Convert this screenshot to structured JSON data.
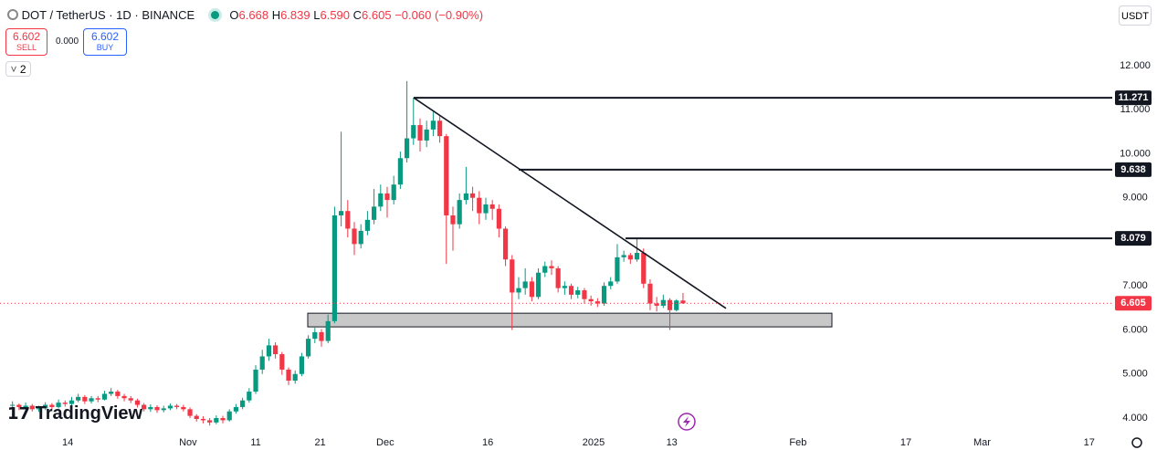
{
  "header": {
    "symbol": "DOT / TetherUS · 1D · BINANCE",
    "ohlc": [
      {
        "key": "O",
        "value": "6.668"
      },
      {
        "key": "H",
        "value": "6.839"
      },
      {
        "key": "L",
        "value": "6.590"
      },
      {
        "key": "C",
        "value": "6.605"
      }
    ],
    "change": "−0.060 (−0.90%)",
    "sell_price": "6.602",
    "sell_label": "SELL",
    "spread": "0.000",
    "buy_price": "6.602",
    "buy_label": "BUY",
    "indicators_count": "2",
    "currency": "USDT",
    "watermark": "TradingView"
  },
  "chart_data": {
    "type": "candlestick",
    "colors": {
      "up": "#089981",
      "down": "#f23645"
    },
    "open": [
      4.28,
      4.3,
      4.25,
      4.28,
      4.2,
      4.22,
      4.3,
      4.25,
      4.35,
      4.32,
      4.4,
      4.48,
      4.38,
      4.45,
      4.42,
      4.55,
      4.6,
      4.5,
      4.45,
      4.4,
      4.3,
      4.2,
      4.25,
      4.18,
      4.22,
      4.28,
      4.25,
      4.2,
      4.05,
      3.98,
      3.95,
      3.9,
      4.0,
      3.95,
      4.15,
      4.25,
      4.4,
      4.6,
      5.1,
      5.4,
      5.65,
      5.45,
      5.1,
      4.85,
      5.0,
      5.4,
      5.8,
      5.95,
      5.75,
      6.2,
      8.6,
      8.7,
      8.3,
      7.95,
      8.25,
      8.5,
      8.8,
      9.1,
      8.95,
      9.3,
      9.9,
      10.35,
      10.65,
      10.3,
      10.55,
      10.75,
      10.4,
      8.6,
      8.4,
      8.95,
      9.1,
      9.0,
      8.65,
      8.85,
      8.75,
      8.3,
      7.6,
      6.85,
      6.95,
      7.1,
      6.75,
      7.3,
      7.45,
      7.4,
      6.95,
      7.0,
      6.8,
      6.9,
      6.7,
      6.65,
      6.6,
      7.0,
      7.1,
      7.65,
      7.7,
      7.6,
      7.75,
      7.05,
      6.6,
      6.55,
      6.68,
      6.45,
      6.668
    ],
    "high": [
      4.38,
      4.33,
      4.35,
      4.32,
      4.28,
      4.36,
      4.34,
      4.42,
      4.4,
      4.48,
      4.55,
      4.52,
      4.5,
      4.5,
      4.62,
      4.68,
      4.64,
      4.55,
      4.5,
      4.44,
      4.34,
      4.31,
      4.29,
      4.28,
      4.33,
      4.32,
      4.3,
      4.24,
      4.09,
      4.04,
      4.0,
      4.06,
      4.05,
      4.2,
      4.32,
      4.46,
      4.68,
      5.2,
      5.55,
      5.8,
      5.72,
      5.5,
      5.15,
      5.08,
      5.48,
      5.88,
      6.05,
      6.02,
      6.35,
      8.8,
      10.5,
      8.95,
      8.45,
      8.4,
      8.7,
      9.2,
      9.3,
      9.25,
      9.5,
      10.05,
      11.65,
      11.271,
      10.8,
      10.75,
      10.95,
      10.85,
      10.45,
      8.8,
      9.1,
      9.7,
      9.25,
      9.15,
      9.0,
      8.95,
      8.85,
      8.35,
      7.7,
      7.2,
      7.4,
      7.2,
      7.4,
      7.55,
      7.58,
      7.45,
      7.1,
      7.05,
      6.98,
      6.95,
      6.78,
      6.72,
      7.08,
      7.2,
      7.95,
      7.8,
      7.75,
      8.079,
      7.85,
      7.15,
      6.75,
      6.8,
      6.72,
      6.7,
      6.839
    ],
    "low": [
      4.22,
      4.18,
      4.2,
      4.15,
      4.14,
      4.18,
      4.2,
      4.22,
      4.26,
      4.28,
      4.36,
      4.32,
      4.33,
      4.36,
      4.4,
      4.5,
      4.44,
      4.38,
      4.34,
      4.24,
      4.15,
      4.14,
      4.12,
      4.13,
      4.18,
      4.2,
      4.15,
      4.0,
      3.92,
      3.88,
      3.83,
      3.86,
      3.88,
      3.92,
      4.1,
      4.2,
      4.35,
      4.55,
      5.0,
      5.3,
      5.35,
      4.98,
      4.75,
      4.78,
      4.95,
      5.35,
      5.7,
      5.62,
      5.7,
      6.15,
      8.35,
      8.1,
      7.7,
      7.85,
      8.15,
      8.4,
      8.7,
      8.55,
      8.85,
      9.2,
      9.8,
      10.2,
      10.05,
      10.15,
      10.4,
      10.25,
      7.5,
      7.8,
      8.3,
      8.85,
      8.7,
      8.4,
      8.5,
      8.5,
      8.1,
      7.45,
      6.0,
      6.7,
      6.8,
      6.65,
      6.7,
      7.2,
      7.25,
      6.85,
      6.8,
      6.7,
      6.72,
      6.6,
      6.55,
      6.52,
      6.55,
      6.92,
      7.05,
      7.55,
      7.5,
      7.55,
      6.95,
      6.45,
      6.42,
      6.5,
      6.0,
      6.42,
      6.59
    ],
    "close": [
      4.3,
      4.25,
      4.28,
      4.2,
      4.22,
      4.3,
      4.25,
      4.35,
      4.32,
      4.4,
      4.48,
      4.38,
      4.45,
      4.42,
      4.55,
      4.6,
      4.5,
      4.45,
      4.4,
      4.3,
      4.2,
      4.25,
      4.18,
      4.22,
      4.28,
      4.25,
      4.2,
      4.05,
      3.98,
      3.95,
      3.9,
      4.0,
      3.95,
      4.15,
      4.25,
      4.4,
      4.6,
      5.1,
      5.4,
      5.65,
      5.45,
      5.1,
      4.85,
      5.0,
      5.4,
      5.8,
      5.95,
      5.75,
      6.2,
      8.6,
      8.7,
      8.3,
      7.95,
      8.25,
      8.5,
      8.8,
      9.1,
      8.95,
      9.3,
      9.9,
      10.35,
      10.65,
      10.3,
      10.55,
      10.75,
      10.4,
      8.6,
      8.4,
      8.95,
      9.1,
      9.0,
      8.65,
      8.85,
      8.75,
      8.3,
      7.6,
      6.85,
      6.95,
      7.1,
      6.75,
      7.3,
      7.45,
      7.4,
      6.95,
      7.0,
      6.8,
      6.9,
      6.7,
      6.65,
      6.6,
      7.0,
      7.1,
      7.65,
      7.7,
      7.6,
      7.75,
      7.05,
      6.6,
      6.55,
      6.68,
      6.45,
      6.668,
      6.605
    ],
    "ylim": [
      3.648,
      13.49
    ],
    "yticks": [
      {
        "value": 12,
        "label": "12.000"
      },
      {
        "value": 11,
        "label": "11.000"
      },
      {
        "value": 10,
        "label": "10.000"
      },
      {
        "value": 9,
        "label": "9.000"
      },
      {
        "value": 7,
        "label": "7.000"
      },
      {
        "value": 6,
        "label": "6.000"
      },
      {
        "value": 5,
        "label": "5.000"
      },
      {
        "value": 4,
        "label": "4.000"
      }
    ],
    "xlim": [
      -1.9,
      167.3
    ],
    "xticks": [
      {
        "value": 8.4,
        "label": "14"
      },
      {
        "value": 26.7,
        "label": "Nov"
      },
      {
        "value": 37.0,
        "label": "11"
      },
      {
        "value": 46.8,
        "label": "21"
      },
      {
        "value": 56.7,
        "label": "Dec"
      },
      {
        "value": 72.3,
        "label": "16"
      },
      {
        "value": 88.4,
        "label": "2025"
      },
      {
        "value": 100.3,
        "label": "13"
      },
      {
        "value": 119.5,
        "label": "Feb"
      },
      {
        "value": 135.9,
        "label": "17"
      },
      {
        "value": 147.5,
        "label": "Mar"
      },
      {
        "value": 163.8,
        "label": "17"
      }
    ],
    "grid": false,
    "levels": [
      11.271,
      9.638,
      8.079
    ],
    "last_price": 6.605,
    "trendline": [
      11.271,
      6.49
    ],
    "zone": [
      6.07,
      6.38
    ]
  }
}
